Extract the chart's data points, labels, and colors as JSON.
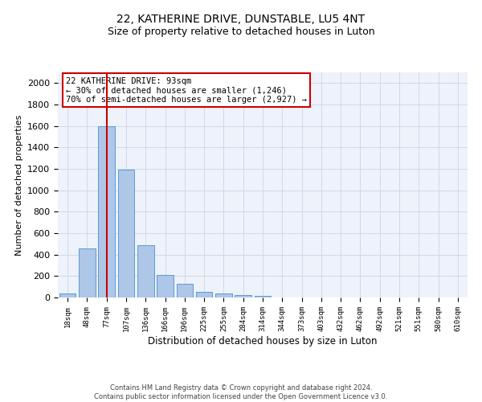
{
  "title_line1": "22, KATHERINE DRIVE, DUNSTABLE, LU5 4NT",
  "title_line2": "Size of property relative to detached houses in Luton",
  "xlabel": "Distribution of detached houses by size in Luton",
  "ylabel": "Number of detached properties",
  "footnote": "Contains HM Land Registry data © Crown copyright and database right 2024.\nContains public sector information licensed under the Open Government Licence v3.0.",
  "bar_labels": [
    "18sqm",
    "48sqm",
    "77sqm",
    "107sqm",
    "136sqm",
    "166sqm",
    "196sqm",
    "225sqm",
    "255sqm",
    "284sqm",
    "314sqm",
    "344sqm",
    "373sqm",
    "403sqm",
    "432sqm",
    "462sqm",
    "492sqm",
    "521sqm",
    "551sqm",
    "580sqm",
    "610sqm"
  ],
  "bar_values": [
    38,
    460,
    1600,
    1190,
    490,
    210,
    130,
    50,
    40,
    25,
    15,
    0,
    0,
    0,
    0,
    0,
    0,
    0,
    0,
    0,
    0
  ],
  "bar_color": "#aec6e8",
  "bar_edge_color": "#5b9bd5",
  "vline_x": 2,
  "vline_color": "#cc0000",
  "annotation_text": "22 KATHERINE DRIVE: 93sqm\n← 30% of detached houses are smaller (1,246)\n70% of semi-detached houses are larger (2,927) →",
  "annotation_box_color": "#cc0000",
  "ylim": [
    0,
    2100
  ],
  "yticks": [
    0,
    200,
    400,
    600,
    800,
    1000,
    1200,
    1400,
    1600,
    1800,
    2000
  ],
  "grid_color": "#d0d8e8",
  "bg_color": "#eef2fa",
  "title1_fontsize": 10,
  "title2_fontsize": 9,
  "footnote_fontsize": 6,
  "ylabel_fontsize": 8,
  "xlabel_fontsize": 8.5
}
